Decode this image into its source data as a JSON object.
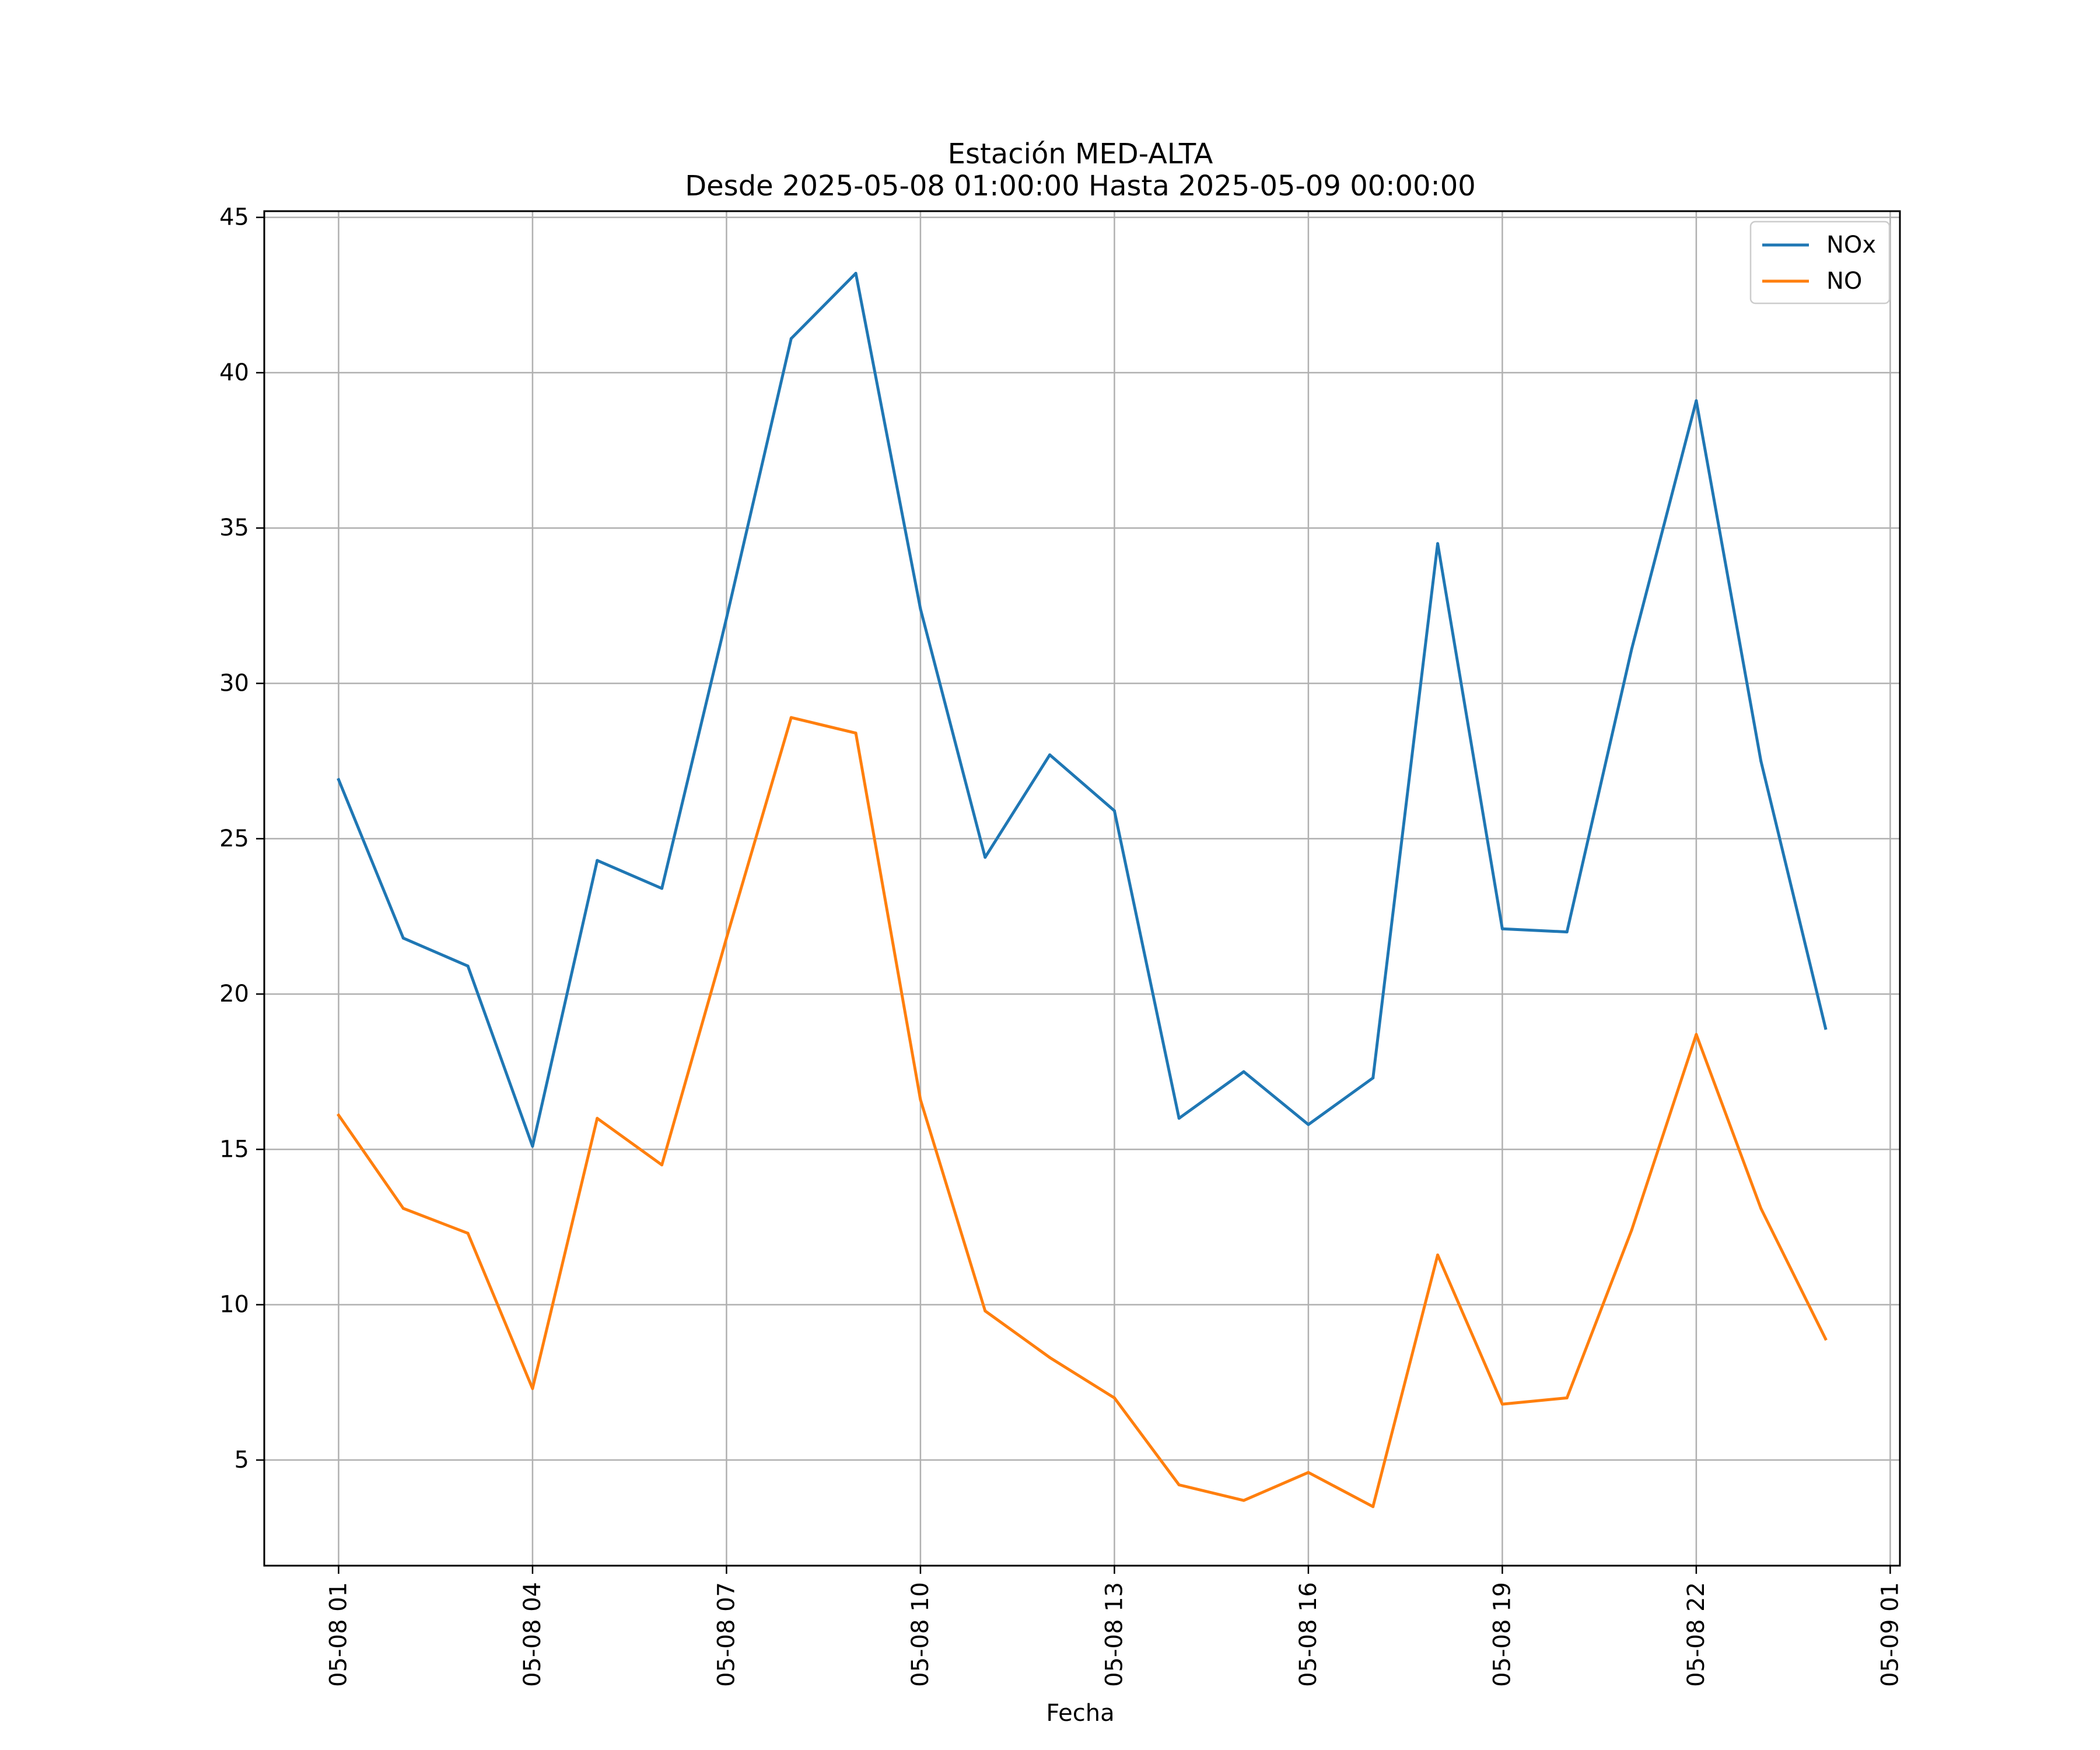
{
  "chart_data": {
    "type": "line",
    "title_line1": "Estación MED-ALTA",
    "title_line2": "Desde 2025-05-08 01:00:00 Hasta 2025-05-09 00:00:00",
    "xlabel": "Fecha",
    "ylabel": "",
    "x": [
      "2025-05-08 01:00",
      "2025-05-08 02:00",
      "2025-05-08 03:00",
      "2025-05-08 04:00",
      "2025-05-08 05:00",
      "2025-05-08 06:00",
      "2025-05-08 07:00",
      "2025-05-08 08:00",
      "2025-05-08 09:00",
      "2025-05-08 10:00",
      "2025-05-08 11:00",
      "2025-05-08 12:00",
      "2025-05-08 13:00",
      "2025-05-08 14:00",
      "2025-05-08 15:00",
      "2025-05-08 16:00",
      "2025-05-08 17:00",
      "2025-05-08 18:00",
      "2025-05-08 19:00",
      "2025-05-08 20:00",
      "2025-05-08 21:00",
      "2025-05-08 22:00",
      "2025-05-08 23:00",
      "2025-05-09 00:00"
    ],
    "x_ticks": [
      "2025-05-08 01:00",
      "2025-05-08 04:00",
      "2025-05-08 07:00",
      "2025-05-08 10:00",
      "2025-05-08 13:00",
      "2025-05-08 16:00",
      "2025-05-08 19:00",
      "2025-05-08 22:00",
      "2025-05-09 01:00"
    ],
    "x_tick_labels": [
      "05-08 01",
      "05-08 04",
      "05-08 07",
      "05-08 10",
      "05-08 13",
      "05-08 16",
      "05-08 19",
      "05-08 22",
      "05-09 01"
    ],
    "xlim": [
      "2025-05-07 23:51",
      "2025-05-09 01:09"
    ],
    "ylim": [
      1.6,
      45.2
    ],
    "y_ticks": [
      5,
      10,
      15,
      20,
      25,
      30,
      35,
      40,
      45
    ],
    "y_tick_labels": [
      "5",
      "10",
      "15",
      "20",
      "25",
      "30",
      "35",
      "40",
      "45"
    ],
    "grid": true,
    "legend_position": "top-right",
    "series": [
      {
        "name": "NOx",
        "color": "#1f77b4",
        "values": [
          26.9,
          21.8,
          20.9,
          15.1,
          24.3,
          23.4,
          32.1,
          41.1,
          43.2,
          32.4,
          24.4,
          27.7,
          25.9,
          16.0,
          17.5,
          15.8,
          17.3,
          34.5,
          22.1,
          22.0,
          31.1,
          39.1,
          27.5,
          18.9
        ]
      },
      {
        "name": "NO",
        "color": "#ff7f0e",
        "values": [
          16.1,
          13.1,
          12.3,
          7.3,
          16.0,
          14.5,
          21.8,
          28.9,
          28.4,
          16.6,
          9.8,
          8.3,
          7.0,
          4.2,
          3.7,
          4.6,
          3.5,
          11.6,
          6.8,
          7.0,
          12.4,
          18.7,
          13.1,
          8.9
        ]
      }
    ]
  }
}
